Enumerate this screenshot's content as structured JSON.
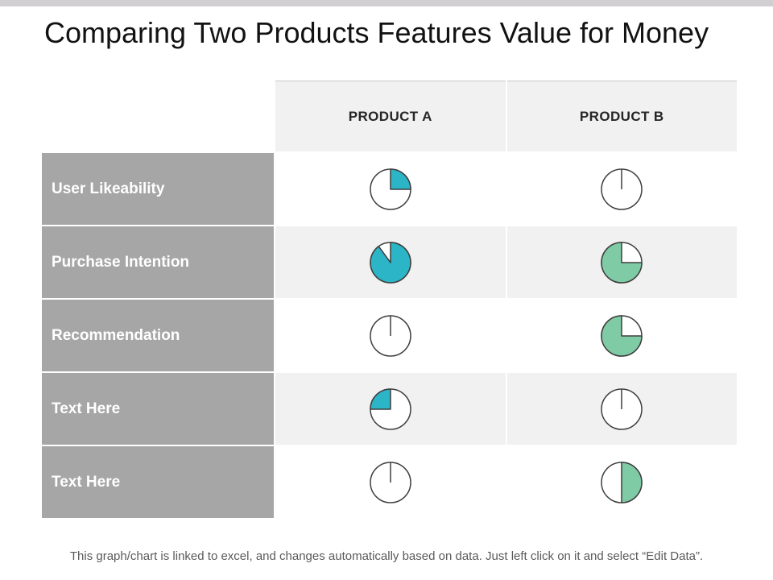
{
  "page": {
    "title": "Comparing Two Products Features Value for Money",
    "footer": "This graph/chart is linked to excel, and changes automatically based on data. Just left click on it and select “Edit Data”."
  },
  "colors": {
    "teal": "#2CB5C6",
    "green": "#7FCBA5",
    "label_bg": "#A6A6A6",
    "zebra": "#F2F1F2",
    "top_strip": "#D2CFD2",
    "pie_stroke": "#3F3F3F",
    "header_text": "#262626",
    "title_text": "#121212",
    "footer_text": "#5A5A5A"
  },
  "table": {
    "columns": [
      "PRODUCT A",
      "PRODUCT B"
    ],
    "rows": [
      {
        "label": "User Likeability",
        "cells": [
          {
            "percent": 25,
            "color": "teal",
            "start": 0
          },
          {
            "percent": 0
          }
        ]
      },
      {
        "label": "Purchase Intention",
        "cells": [
          {
            "percent": 90,
            "color": "teal",
            "start": 0
          },
          {
            "percent": 75,
            "color": "green",
            "start": 90
          }
        ]
      },
      {
        "label": "Recommendation",
        "cells": [
          {
            "percent": 0
          },
          {
            "percent": 75,
            "color": "green",
            "start": 90
          }
        ]
      },
      {
        "label": "Text Here",
        "cells": [
          {
            "percent": 25,
            "color": "teal",
            "start": 270
          },
          {
            "percent": 0
          }
        ]
      },
      {
        "label": "Text Here",
        "cells": [
          {
            "percent": 0
          },
          {
            "percent": 50,
            "color": "green",
            "start": 0
          }
        ]
      }
    ]
  },
  "chart_data": {
    "type": "pie",
    "title": "Comparing Two Products Features Value for Money",
    "description": "Table of harvey-ball pie indicators; values are percent of circle filled",
    "categories": [
      "User Likeability",
      "Purchase Intention",
      "Recommendation",
      "Text Here",
      "Text Here"
    ],
    "series": [
      {
        "name": "PRODUCT A",
        "values": [
          25,
          90,
          0,
          25,
          0
        ],
        "colors": [
          "teal",
          "teal",
          null,
          "teal",
          null
        ]
      },
      {
        "name": "PRODUCT B",
        "values": [
          0,
          75,
          75,
          0,
          50
        ],
        "colors": [
          null,
          "green",
          "green",
          null,
          "green"
        ]
      }
    ],
    "unit": "percent_filled",
    "legend_position": "none"
  }
}
